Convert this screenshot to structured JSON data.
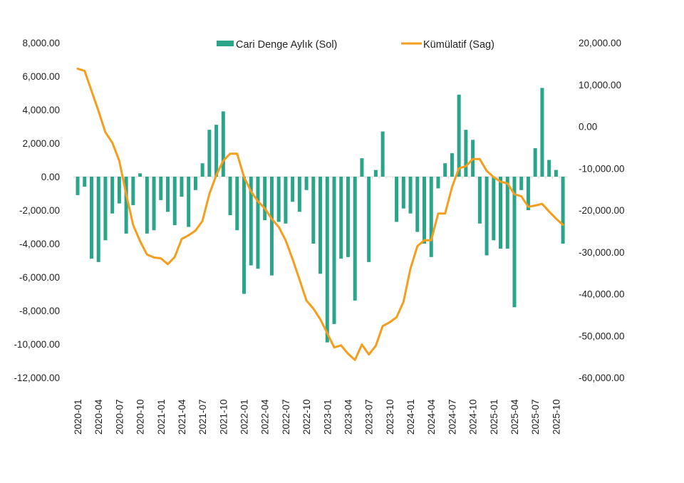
{
  "chart_data": {
    "type": "bar+line",
    "title": "",
    "xlabel": "",
    "ylabel_left": "",
    "ylabel_right": "",
    "colors": {
      "bars": "#2aa58a",
      "line": "#f59d1c",
      "zero_line": "#d9d9d9"
    },
    "legend": {
      "placement": "top-center",
      "entries": [
        {
          "name": "Cari Denge Aylık (Sol)",
          "kind": "bar"
        },
        {
          "name": "Kümülatif (Sag)",
          "kind": "line"
        }
      ]
    },
    "left_axis": {
      "ylim": [
        -12000,
        8000
      ],
      "ticks": [
        8000,
        6000,
        4000,
        2000,
        0,
        -2000,
        -4000,
        -6000,
        -8000,
        -10000,
        -12000
      ],
      "tick_labels": [
        "8,000.00",
        "6,000.00",
        "4,000.00",
        "2,000.00",
        "0.00",
        "-2,000.00",
        "-4,000.00",
        "-6,000.00",
        "-8,000.00",
        "-10,000.00",
        "-12,000.00"
      ]
    },
    "right_axis": {
      "ylim": [
        -60000,
        20000
      ],
      "ticks": [
        20000,
        10000,
        0,
        -10000,
        -20000,
        -30000,
        -40000,
        -50000,
        -60000
      ],
      "tick_labels": [
        "20,000.00",
        "10,000.00",
        "0.00",
        "-10,000.00",
        "-20,000.00",
        "-30,000.00",
        "-40,000.00",
        "-50,000.00",
        "-60,000.00"
      ]
    },
    "x_tick_labels": [
      "2020-01",
      "2020-04",
      "2020-07",
      "2020-10",
      "2021-01",
      "2021-04",
      "2021-07",
      "2021-10",
      "2022-01",
      "2022-04",
      "2022-07",
      "2022-10",
      "2023-01",
      "2023-04",
      "2023-07",
      "2023-10",
      "2024-01",
      "2024-04",
      "2024-07",
      "2024-10",
      "2025-01",
      "2025-04",
      "2025-07",
      "2025-10"
    ],
    "x": [
      "2020-01",
      "2020-02",
      "2020-03",
      "2020-04",
      "2020-05",
      "2020-06",
      "2020-07",
      "2020-08",
      "2020-09",
      "2020-10",
      "2020-11",
      "2020-12",
      "2021-01",
      "2021-02",
      "2021-03",
      "2021-04",
      "2021-05",
      "2021-06",
      "2021-07",
      "2021-08",
      "2021-09",
      "2021-10",
      "2021-11",
      "2021-12",
      "2022-01",
      "2022-02",
      "2022-03",
      "2022-04",
      "2022-05",
      "2022-06",
      "2022-07",
      "2022-08",
      "2022-09",
      "2022-10",
      "2022-11",
      "2022-12",
      "2023-01",
      "2023-02",
      "2023-03",
      "2023-04",
      "2023-05",
      "2023-06",
      "2023-07",
      "2023-08",
      "2023-09",
      "2023-10",
      "2023-11",
      "2023-12",
      "2024-01",
      "2024-02",
      "2024-03",
      "2024-04",
      "2024-05",
      "2024-06",
      "2024-07",
      "2024-08",
      "2024-09",
      "2024-10",
      "2024-11",
      "2024-12",
      "2025-01",
      "2025-02",
      "2025-03",
      "2025-04",
      "2025-05",
      "2025-06",
      "2025-07",
      "2025-08",
      "2025-09",
      "2025-10",
      "2025-11"
    ],
    "series": [
      {
        "name": "Cari Denge Aylık (Sol)",
        "type": "bar",
        "axis": "left",
        "values": [
          -1100,
          -600,
          -4900,
          -5100,
          -3800,
          -2200,
          -1600,
          -3400,
          -1700,
          200,
          -3400,
          -3200,
          -1400,
          -2100,
          -2900,
          -1200,
          -3000,
          -800,
          800,
          2800,
          3100,
          3900,
          -2300,
          -3200,
          -7000,
          -5300,
          -5500,
          -2600,
          -5900,
          -2700,
          -2800,
          -1500,
          -2100,
          -800,
          -4000,
          -5800,
          -9900,
          -8800,
          -4900,
          -4800,
          -7400,
          1100,
          -5100,
          400,
          2700,
          0,
          -2700,
          -1900,
          -2200,
          -3300,
          -4000,
          -4800,
          -700,
          800,
          1400,
          4900,
          2800,
          2200,
          -2800,
          -4700,
          -3800,
          -4300,
          -4300,
          -7800,
          -800,
          -2000,
          1700,
          5300,
          1000,
          400,
          -4000
        ]
      },
      {
        "name": "Kümülatif (Sag)",
        "type": "line",
        "axis": "right",
        "values": [
          13800,
          13300,
          8500,
          3700,
          -1400,
          -3900,
          -8200,
          -16200,
          -23500,
          -27400,
          -30600,
          -31300,
          -31500,
          -32900,
          -31200,
          -26900,
          -26000,
          -24900,
          -22600,
          -16100,
          -11600,
          -8200,
          -6500,
          -6500,
          -12100,
          -15500,
          -17900,
          -19600,
          -22100,
          -24000,
          -27200,
          -31700,
          -36600,
          -41600,
          -43500,
          -46100,
          -49400,
          -52800,
          -52300,
          -54300,
          -55800,
          -52100,
          -54500,
          -52400,
          -47700,
          -46800,
          -45600,
          -41900,
          -34000,
          -28600,
          -27200,
          -27200,
          -20800,
          -20800,
          -14500,
          -10000,
          -9500,
          -7800,
          -7800,
          -10600,
          -12100,
          -13200,
          -13600,
          -16200,
          -16700,
          -19200,
          -18900,
          -18500,
          -20300,
          -22000,
          -23500
        ]
      }
    ]
  }
}
